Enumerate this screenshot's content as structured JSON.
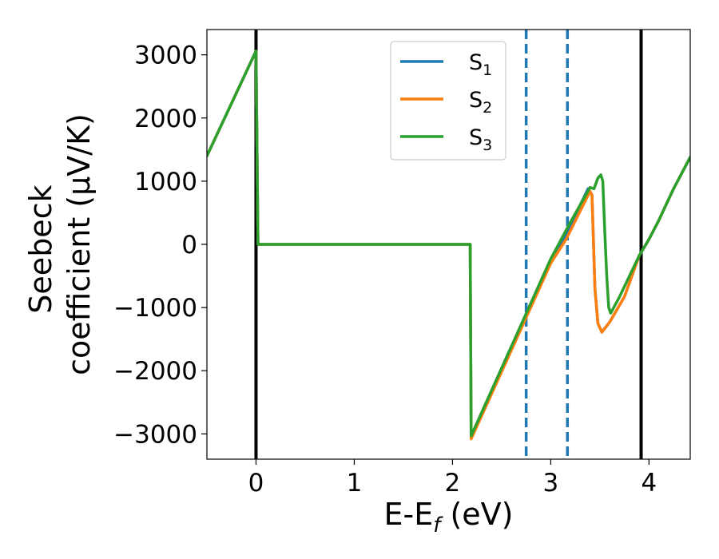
{
  "chart_data": {
    "type": "line",
    "xlabel": {
      "main": "E-E",
      "sub": "f",
      "suffix": " (eV)"
    },
    "ylabel": {
      "line1": "Seebeck",
      "line2": "coefficient  (μV/K)"
    },
    "xlim": [
      -0.5,
      4.42
    ],
    "ylim": [
      -3400,
      3400
    ],
    "xticks": [
      0,
      1,
      2,
      3,
      4
    ],
    "yticks": [
      -3000,
      -2000,
      -1000,
      0,
      1000,
      2000,
      3000
    ],
    "xtick_labels": [
      "0",
      "1",
      "2",
      "3",
      "4"
    ],
    "ytick_labels": [
      "−3000",
      "−2000",
      "−1000",
      "0",
      "1000",
      "2000",
      "3000"
    ],
    "grid": false,
    "legend_position": "top-center",
    "series": [
      {
        "name": "S",
        "sub": "1",
        "color": "#1f77b4",
        "points": [
          [
            -0.5,
            1400
          ],
          [
            0,
            3060
          ],
          [
            0.02,
            0
          ],
          [
            2.18,
            0
          ],
          [
            2.19,
            -3060
          ],
          [
            3.0,
            -260
          ],
          [
            3.15,
            140
          ],
          [
            3.38,
            880
          ],
          [
            3.42,
            780
          ],
          [
            3.45,
            -700
          ],
          [
            3.48,
            -1250
          ],
          [
            3.52,
            -1390
          ],
          [
            3.6,
            -1230
          ],
          [
            3.75,
            -830
          ],
          [
            3.9,
            -180
          ],
          [
            4.0,
            80
          ],
          [
            4.1,
            380
          ],
          [
            4.25,
            880
          ],
          [
            4.42,
            1380
          ]
        ]
      },
      {
        "name": "S",
        "sub": "2",
        "color": "#ff7f0e",
        "points": [
          [
            -0.5,
            1400
          ],
          [
            0,
            3060
          ],
          [
            0.02,
            0
          ],
          [
            2.18,
            0
          ],
          [
            2.19,
            -3080
          ],
          [
            3.0,
            -300
          ],
          [
            3.16,
            90
          ],
          [
            3.4,
            840
          ],
          [
            3.42,
            780
          ],
          [
            3.45,
            -700
          ],
          [
            3.48,
            -1250
          ],
          [
            3.52,
            -1390
          ],
          [
            3.6,
            -1230
          ],
          [
            3.75,
            -830
          ],
          [
            3.9,
            -180
          ],
          [
            4.0,
            80
          ],
          [
            4.1,
            380
          ],
          [
            4.25,
            880
          ],
          [
            4.42,
            1380
          ]
        ]
      },
      {
        "name": "S",
        "sub": "3",
        "color": "#2ca02c",
        "points": [
          [
            -0.5,
            1400
          ],
          [
            0,
            3060
          ],
          [
            0.02,
            0
          ],
          [
            2.18,
            0
          ],
          [
            2.19,
            -3030
          ],
          [
            3.0,
            -230
          ],
          [
            3.2,
            350
          ],
          [
            3.4,
            900
          ],
          [
            3.44,
            880
          ],
          [
            3.48,
            1050
          ],
          [
            3.51,
            1100
          ],
          [
            3.53,
            1000
          ],
          [
            3.55,
            200
          ],
          [
            3.57,
            -500
          ],
          [
            3.59,
            -1000
          ],
          [
            3.61,
            -1090
          ],
          [
            3.7,
            -830
          ],
          [
            3.9,
            -180
          ],
          [
            4.0,
            80
          ],
          [
            4.1,
            380
          ],
          [
            4.25,
            880
          ],
          [
            4.42,
            1380
          ]
        ]
      }
    ],
    "vlines": [
      {
        "x": 0.0,
        "color": "#000000",
        "style": "solid"
      },
      {
        "x": 3.92,
        "color": "#000000",
        "style": "solid"
      },
      {
        "x": 2.75,
        "color": "#1f77b4",
        "style": "dashed"
      },
      {
        "x": 3.17,
        "color": "#1f77b4",
        "style": "dashed"
      }
    ]
  }
}
